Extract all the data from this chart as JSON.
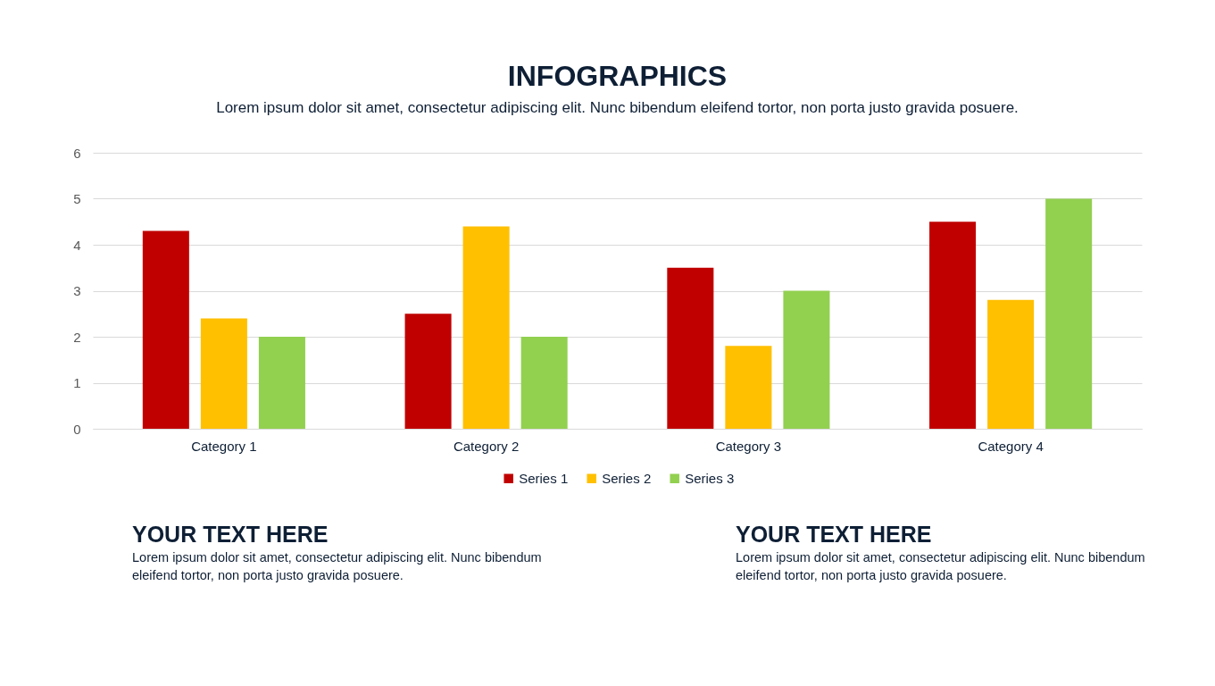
{
  "chart_data": {
    "type": "bar",
    "title": "INFOGRAPHICS",
    "subtitle": "Lorem ipsum dolor sit amet, consectetur adipiscing elit. Nunc bibendum eleifend tortor, non porta justo gravida posuere.",
    "categories": [
      "Category 1",
      "Category 2",
      "Category 3",
      "Category 4"
    ],
    "series": [
      {
        "name": "Series 1",
        "color": "#c00000",
        "values": [
          4.3,
          2.5,
          3.5,
          4.5
        ]
      },
      {
        "name": "Series 2",
        "color": "#ffc000",
        "values": [
          2.4,
          4.4,
          1.8,
          2.8
        ]
      },
      {
        "name": "Series 3",
        "color": "#92d050",
        "values": [
          2,
          2,
          3,
          5
        ]
      }
    ],
    "ylim": [
      0,
      6
    ],
    "yticks": [
      0,
      1,
      2,
      3,
      4,
      5,
      6
    ],
    "grid": "y",
    "legend": "bottom",
    "annotations": [
      "YOUR TEXT HERE",
      "Lorem ipsum dolor sit amet, consectetur adipiscing elit. Nunc bibendum eleifend tortor, non porta justo gravida posuere.",
      "YOUR TEXT HERE",
      "Lorem ipsum dolor sit amet, consectetur adipiscing elit. Nunc bibendum eleifend tortor, non porta justo gravida posuere."
    ]
  }
}
